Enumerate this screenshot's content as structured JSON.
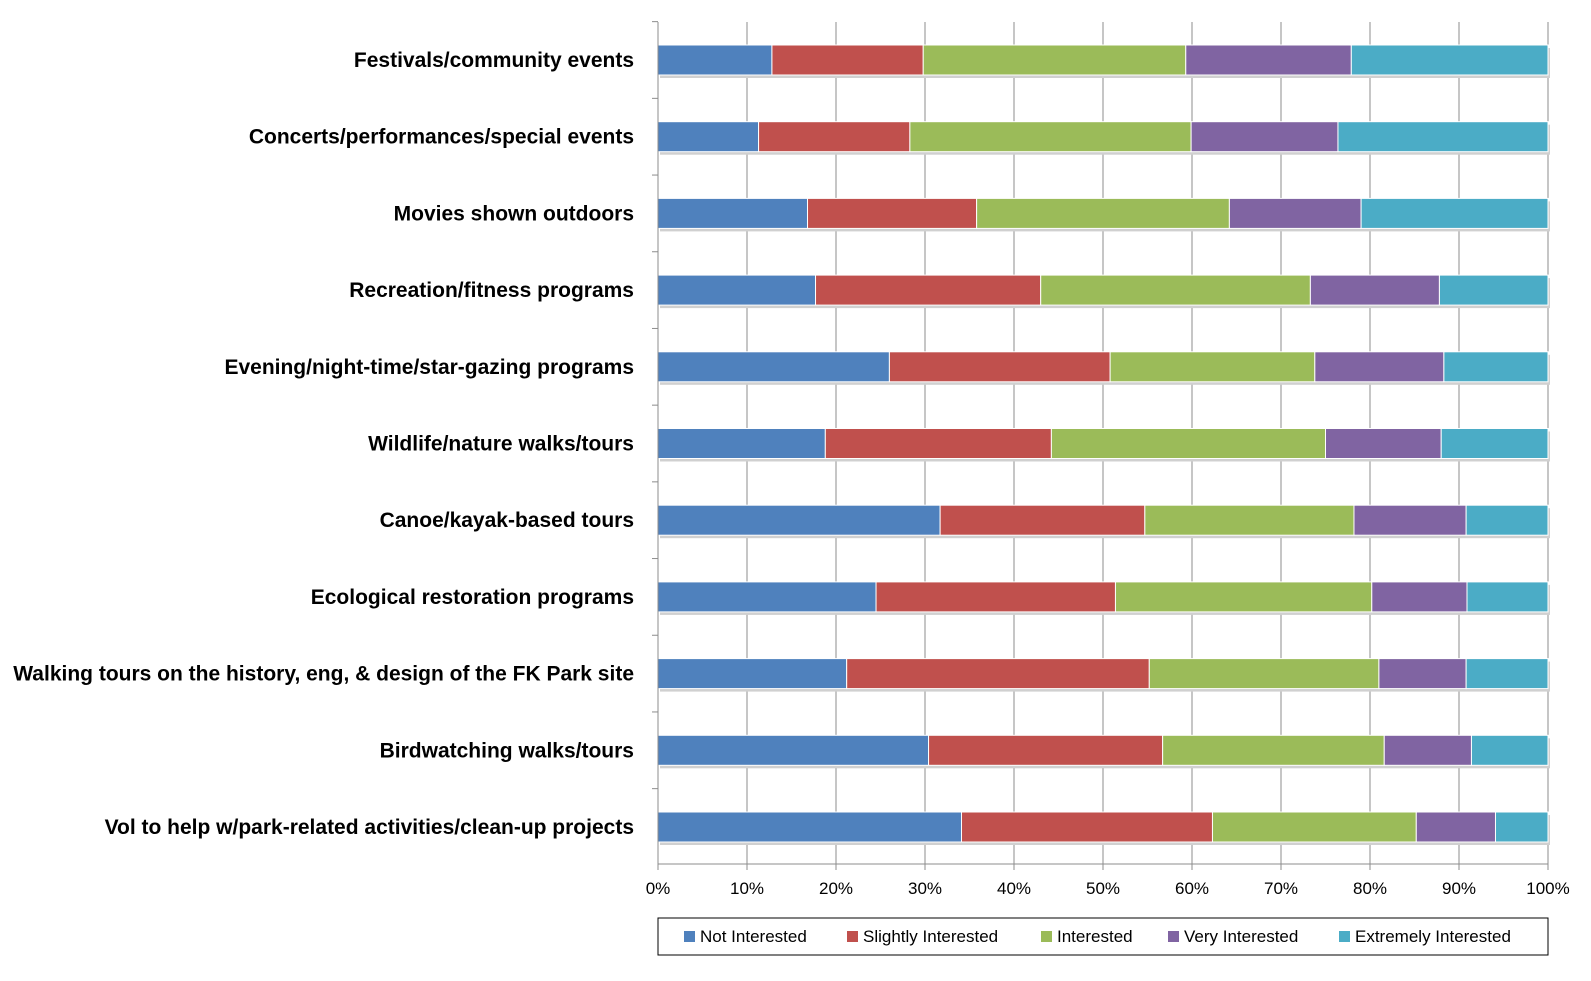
{
  "chart_data": {
    "type": "bar",
    "orientation": "horizontal",
    "stacked": "percent",
    "title": "",
    "xlabel": "",
    "ylabel": "",
    "xlim": [
      0,
      100
    ],
    "grid": true,
    "legend_position": "bottom",
    "x_ticks": [
      "0%",
      "10%",
      "20%",
      "30%",
      "40%",
      "50%",
      "60%",
      "70%",
      "80%",
      "90%",
      "100%"
    ],
    "categories": [
      "Festivals/community events",
      "Concerts/performances/special events",
      "Movies shown outdoors",
      "Recreation/fitness programs",
      "Evening/night-time/star-gazing programs",
      "Wildlife/nature walks/tours",
      "Canoe/kayak-based tours",
      "Ecological restoration programs",
      "Walking tours on the history, eng, & design of the FK Park site",
      "Birdwatching walks/tours",
      "Vol to help w/park-related activities/clean-up projects"
    ],
    "series": [
      {
        "name": "Not Interested",
        "color": "#4F81BD",
        "values": [
          12.8,
          11.3,
          16.8,
          17.7,
          26.0,
          18.8,
          31.7,
          24.5,
          21.2,
          30.4,
          34.1
        ]
      },
      {
        "name": "Slightly Interested",
        "color": "#C0504D",
        "values": [
          17.0,
          17.0,
          19.0,
          25.3,
          24.8,
          25.4,
          23.0,
          26.9,
          34.0,
          26.3,
          28.2
        ]
      },
      {
        "name": "Interested",
        "color": "#9BBB59",
        "values": [
          29.5,
          31.6,
          28.4,
          30.3,
          23.0,
          30.8,
          23.5,
          28.8,
          25.8,
          24.9,
          22.9
        ]
      },
      {
        "name": "Very Interested",
        "color": "#8064A2",
        "values": [
          18.6,
          16.5,
          14.8,
          14.5,
          14.5,
          13.0,
          12.6,
          10.7,
          9.8,
          9.8,
          8.9
        ]
      },
      {
        "name": "Extremely Interested",
        "color": "#4BACC6",
        "values": [
          22.1,
          23.6,
          21.0,
          12.2,
          11.7,
          12.0,
          9.2,
          9.1,
          9.2,
          8.6,
          5.9
        ]
      }
    ]
  }
}
